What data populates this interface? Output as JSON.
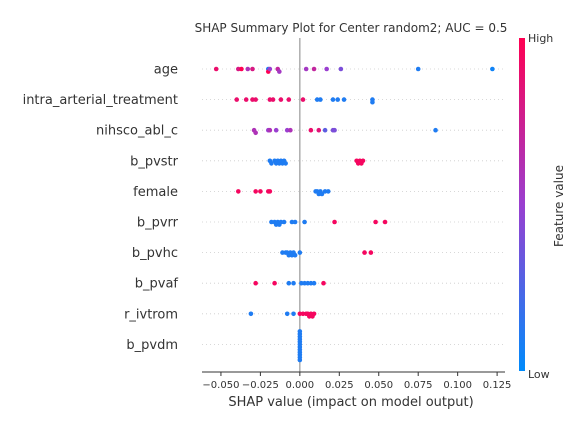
{
  "chart_data": {
    "type": "scatter",
    "title": "SHAP Summary Plot for Center random2; AUC = 0.5",
    "xlabel": "SHAP value (impact on model output)",
    "xlim": [
      -0.062,
      0.13
    ],
    "x_ticks": [
      -0.05,
      -0.025,
      0.0,
      0.025,
      0.05,
      0.075,
      0.1,
      0.125
    ],
    "x_tick_labels": [
      "−0.050",
      "−0.025",
      "0.000",
      "0.025",
      "0.050",
      "0.075",
      "0.100",
      "0.125"
    ],
    "colorbar": {
      "label": "Feature value",
      "high_label": "High",
      "low_label": "Low",
      "low_color": "#008bfb",
      "high_color": "#ff0052"
    },
    "features": [
      {
        "name": "age",
        "points": [
          [
            -0.053,
            0.9
          ],
          [
            -0.039,
            0.8
          ],
          [
            -0.037,
            1.0
          ],
          [
            -0.033,
            0.6
          ],
          [
            -0.03,
            0.8
          ],
          [
            -0.02,
            0.1
          ],
          [
            -0.02,
            1.0
          ],
          [
            -0.019,
            0.5
          ],
          [
            -0.014,
            0.7
          ],
          [
            -0.013,
            0.55
          ],
          [
            0.004,
            0.55
          ],
          [
            0.009,
            0.7
          ],
          [
            0.017,
            0.5
          ],
          [
            0.026,
            0.4
          ],
          [
            0.075,
            0.1
          ],
          [
            0.122,
            0.05
          ]
        ]
      },
      {
        "name": "intra_arterial_treatment",
        "points": [
          [
            -0.04,
            0.9
          ],
          [
            -0.034,
            0.9
          ],
          [
            -0.03,
            0.9
          ],
          [
            -0.028,
            0.9
          ],
          [
            -0.019,
            0.9
          ],
          [
            -0.017,
            0.9
          ],
          [
            -0.012,
            0.9
          ],
          [
            -0.007,
            0.9
          ],
          [
            0.002,
            0.9
          ],
          [
            0.011,
            0.1
          ],
          [
            0.013,
            0.1
          ],
          [
            0.021,
            0.1
          ],
          [
            0.024,
            0.1
          ],
          [
            0.028,
            0.1
          ],
          [
            0.046,
            0.1
          ],
          [
            0.046,
            0.1
          ]
        ]
      },
      {
        "name": "nihsco_abl_c",
        "points": [
          [
            -0.029,
            0.6
          ],
          [
            -0.028,
            0.6
          ],
          [
            -0.02,
            0.5
          ],
          [
            -0.019,
            0.6
          ],
          [
            -0.015,
            0.5
          ],
          [
            -0.008,
            0.5
          ],
          [
            -0.006,
            0.6
          ],
          [
            0.007,
            0.9
          ],
          [
            0.012,
            0.85
          ],
          [
            0.016,
            0.3
          ],
          [
            0.021,
            0.4
          ],
          [
            0.022,
            0.4
          ],
          [
            0.086,
            0.1
          ]
        ]
      },
      {
        "name": "b_pvstr",
        "points": [
          [
            -0.019,
            0.1
          ],
          [
            -0.018,
            0.1
          ],
          [
            -0.016,
            0.1
          ],
          [
            -0.015,
            0.1
          ],
          [
            -0.014,
            0.1
          ],
          [
            -0.013,
            0.1
          ],
          [
            -0.012,
            0.1
          ],
          [
            -0.011,
            0.1
          ],
          [
            -0.01,
            0.1
          ],
          [
            -0.009,
            0.1
          ],
          [
            0.036,
            0.95
          ],
          [
            0.037,
            0.95
          ],
          [
            0.038,
            0.95
          ],
          [
            0.039,
            0.95
          ],
          [
            0.04,
            0.95
          ]
        ]
      },
      {
        "name": "female",
        "points": [
          [
            -0.039,
            0.95
          ],
          [
            -0.028,
            0.95
          ],
          [
            -0.025,
            0.95
          ],
          [
            -0.02,
            0.95
          ],
          [
            -0.019,
            0.95
          ],
          [
            0.01,
            0.1
          ],
          [
            0.011,
            0.1
          ],
          [
            0.012,
            0.1
          ],
          [
            0.013,
            0.1
          ],
          [
            0.014,
            0.1
          ],
          [
            0.016,
            0.1
          ],
          [
            0.018,
            0.1
          ]
        ]
      },
      {
        "name": "b_pvrr",
        "points": [
          [
            -0.018,
            0.1
          ],
          [
            -0.016,
            0.1
          ],
          [
            -0.015,
            0.1
          ],
          [
            -0.014,
            0.1
          ],
          [
            -0.013,
            0.1
          ],
          [
            -0.012,
            0.1
          ],
          [
            -0.01,
            0.1
          ],
          [
            -0.005,
            0.1
          ],
          [
            -0.003,
            0.1
          ],
          [
            0.003,
            0.1
          ],
          [
            0.022,
            0.95
          ],
          [
            0.048,
            0.95
          ],
          [
            0.054,
            0.95
          ]
        ]
      },
      {
        "name": "b_pvhc",
        "points": [
          [
            -0.011,
            0.1
          ],
          [
            -0.009,
            0.1
          ],
          [
            -0.008,
            0.1
          ],
          [
            -0.007,
            0.1
          ],
          [
            -0.006,
            0.1
          ],
          [
            -0.005,
            0.1
          ],
          [
            -0.004,
            0.1
          ],
          [
            -0.003,
            0.1
          ],
          [
            0.0,
            0.1
          ],
          [
            0.041,
            0.95
          ],
          [
            0.045,
            0.95
          ]
        ]
      },
      {
        "name": "b_pvaf",
        "points": [
          [
            -0.028,
            0.95
          ],
          [
            -0.016,
            0.95
          ],
          [
            -0.007,
            0.1
          ],
          [
            -0.004,
            0.1
          ],
          [
            0.001,
            0.1
          ],
          [
            0.003,
            0.1
          ],
          [
            0.005,
            0.1
          ],
          [
            0.007,
            0.1
          ],
          [
            0.009,
            0.1
          ],
          [
            0.015,
            0.95
          ]
        ]
      },
      {
        "name": "r_ivtrom",
        "points": [
          [
            -0.031,
            0.1
          ],
          [
            -0.008,
            0.1
          ],
          [
            -0.004,
            0.1
          ],
          [
            0.0,
            0.95
          ],
          [
            0.002,
            0.95
          ],
          [
            0.004,
            0.95
          ],
          [
            0.005,
            0.95
          ],
          [
            0.006,
            0.95
          ],
          [
            0.007,
            0.95
          ],
          [
            0.008,
            0.95
          ],
          [
            0.009,
            0.95
          ]
        ]
      },
      {
        "name": "b_pvdm",
        "points": [
          [
            0.0,
            0.1
          ],
          [
            0.0,
            0.1
          ],
          [
            0.0,
            0.1
          ],
          [
            0.0,
            0.1
          ],
          [
            0.0,
            0.1
          ],
          [
            0.0,
            0.1
          ],
          [
            0.0,
            0.1
          ],
          [
            0.0,
            0.1
          ],
          [
            0.0,
            0.1
          ],
          [
            0.0,
            0.1
          ],
          [
            0.0,
            0.1
          ],
          [
            0.0,
            0.1
          ]
        ]
      }
    ]
  }
}
